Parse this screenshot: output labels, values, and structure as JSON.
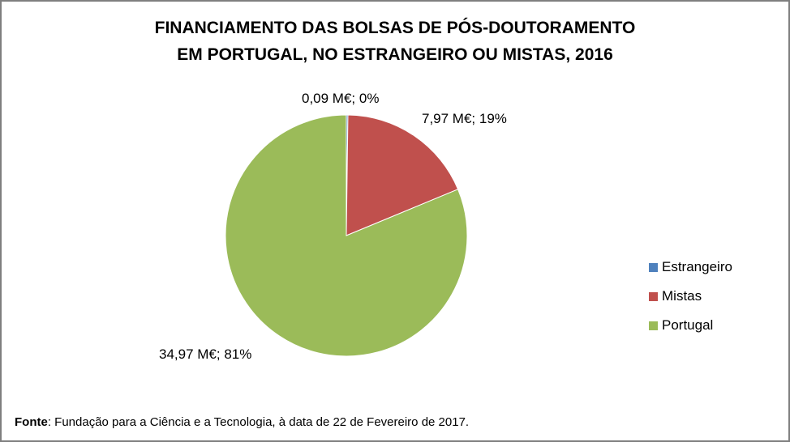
{
  "chart_data": {
    "type": "pie",
    "title_lines": [
      "FINANCIAMENTO DAS BOLSAS DE PÓS-DOUTORAMENTO",
      "EM PORTUGAL, NO ESTRANGEIRO OU MISTAS, 2016"
    ],
    "slices": [
      {
        "name": "Estrangeiro",
        "value": 0.09,
        "label": "0,09 M€; 0%",
        "color": "#4f81bd"
      },
      {
        "name": "Mistas",
        "value": 7.97,
        "label": "7,97 M€; 19%",
        "color": "#c0504d"
      },
      {
        "name": "Portugal",
        "value": 34.97,
        "label": "34,97 M€; 81%",
        "color": "#9bbb59"
      }
    ],
    "legend_position": "right"
  },
  "source": {
    "prefix": "Fonte",
    "text": ": Fundação para a Ciência e a Tecnologia, à data de 22 de Fevereiro de 2017."
  }
}
